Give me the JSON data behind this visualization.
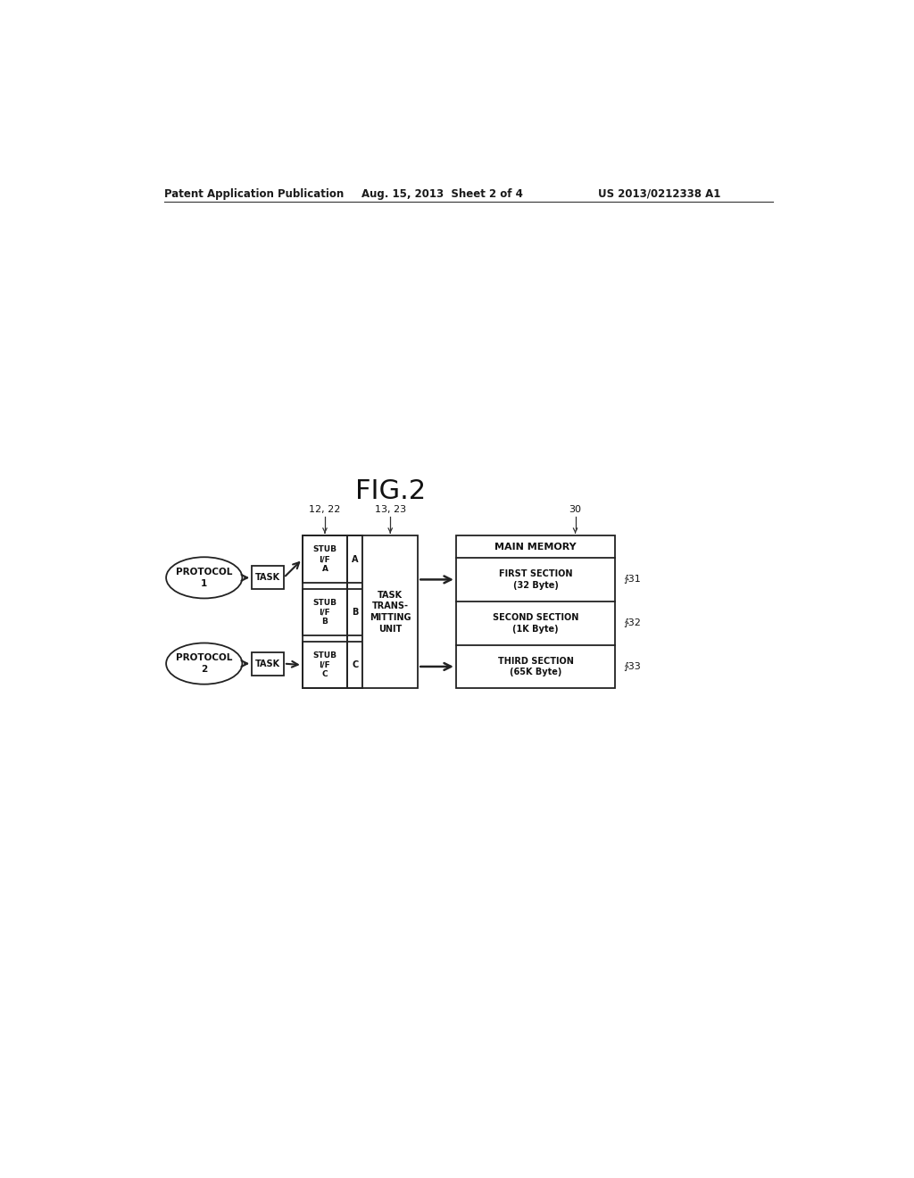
{
  "bg_color": "#ffffff",
  "header_left": "Patent Application Publication",
  "header_mid": "Aug. 15, 2013  Sheet 2 of 4",
  "header_right": "US 2013/0212338 A1",
  "fig_label": "FIG.2",
  "label_1222": "12, 22",
  "label_1323": "13, 23",
  "label_30": "30",
  "label_31": "∱31",
  "label_32": "∱32",
  "label_33": "∱33",
  "protocol1_text": "PROTOCOL\n1",
  "protocol2_text": "PROTOCOL\n2",
  "task_text": "TASK",
  "stub_a_text": "STUB\nI/F\nA",
  "stub_b_text": "STUB\nI/F\nB",
  "stub_c_text": "STUB\nI/F\nC",
  "a_text": "A",
  "b_text": "B",
  "c_text": "C",
  "task_trans_text": "TASK\nTRANS-\nMITTING\nUNIT",
  "main_memory_text": "MAIN MEMORY",
  "first_section_text": "FIRST SECTION\n(32 Byte)",
  "second_section_text": "SECOND SECTION\n(1K Byte)",
  "third_section_text": "THIRD SECTION\n(65K Byte)"
}
